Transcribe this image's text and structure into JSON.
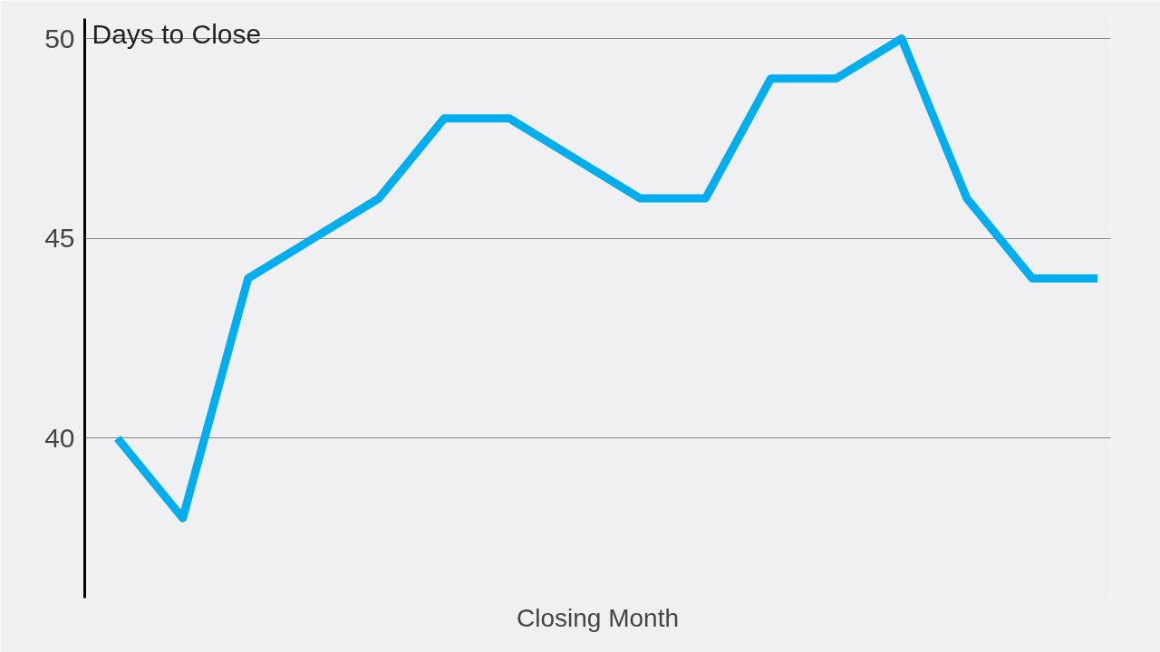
{
  "chart_data": {
    "type": "line",
    "xlabel": "Closing Month",
    "ylabel": "Days to Close",
    "categories": [
      null,
      null,
      null,
      null,
      null,
      null,
      null,
      null,
      null,
      null,
      null,
      null,
      null,
      null,
      null,
      null
    ],
    "series": [
      {
        "color": "#00aeef",
        "values": [
          40,
          38,
          44,
          45,
          46,
          48,
          48,
          47,
          46,
          46,
          49,
          49,
          50,
          46,
          44,
          44
        ]
      }
    ],
    "ylim": [
      36,
      50.5
    ],
    "yticks": [
      40,
      45,
      50
    ],
    "grid": "y",
    "marker": "none",
    "line_style": "solid"
  }
}
